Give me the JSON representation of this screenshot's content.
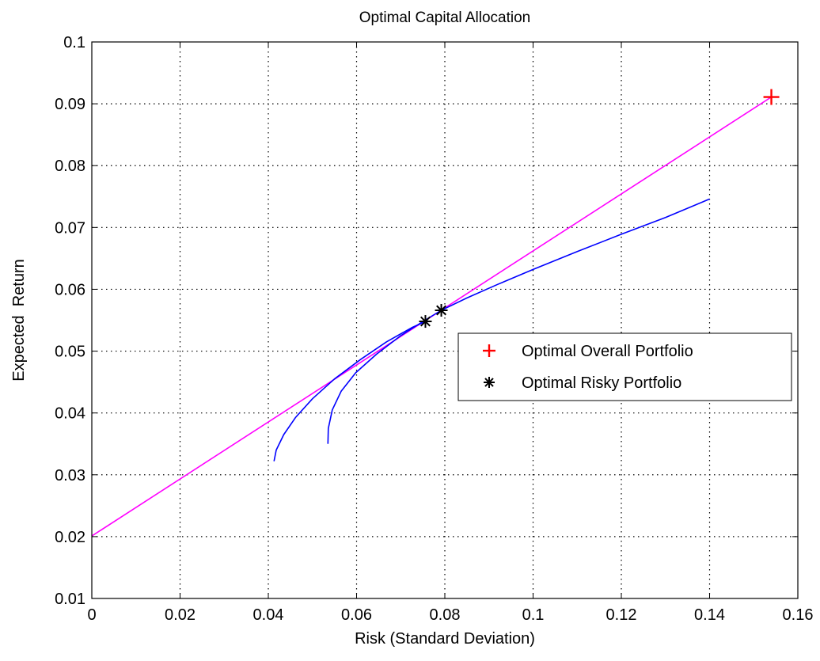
{
  "chart_data": {
    "type": "line",
    "title": "Optimal Capital Allocation",
    "xlabel": "Risk (Standard Deviation)",
    "ylabel": "Expected  Return",
    "xlim": [
      0,
      0.16
    ],
    "ylim": [
      0.01,
      0.1
    ],
    "x_ticks": [
      "0",
      "0.02",
      "0.04",
      "0.06",
      "0.08",
      "0.1",
      "0.12",
      "0.14",
      "0.16"
    ],
    "y_ticks": [
      "0.01",
      "0.02",
      "0.03",
      "0.04",
      "0.05",
      "0.06",
      "0.07",
      "0.08",
      "0.09",
      "0.1"
    ],
    "grid": true,
    "grid_style": "dotted",
    "legend_position": "center-right",
    "colors": {
      "capital_allocation_line": "#ff00ff",
      "frontier": "#0000ff",
      "overall_marker": "#ff0000",
      "risky_marker": "#000000",
      "axes": "#000000",
      "grid": "#000000"
    },
    "lines": [
      {
        "style": "capital-allocation-line",
        "color": "#ff00ff",
        "x": [
          0,
          0.154
        ],
        "y": [
          0.0201,
          0.0911
        ]
      },
      {
        "style": "efficient-frontier-1",
        "color": "#0000ff",
        "x": [
          0.0413,
          0.0418,
          0.0435,
          0.0462,
          0.05,
          0.055,
          0.061,
          0.0668,
          0.0725,
          0.0756
        ],
        "y": [
          0.0322,
          0.034,
          0.0365,
          0.0393,
          0.0423,
          0.0455,
          0.0487,
          0.0515,
          0.0538,
          0.0548
        ]
      },
      {
        "style": "efficient-frontier-2",
        "color": "#0000ff",
        "x": [
          0.0535,
          0.0536,
          0.0545,
          0.0565,
          0.0598,
          0.0645,
          0.07,
          0.0755,
          0.0792,
          0.085,
          0.092,
          0.1,
          0.11,
          0.12,
          0.13,
          0.14
        ],
        "y": [
          0.035,
          0.0375,
          0.0405,
          0.0435,
          0.0465,
          0.0495,
          0.0525,
          0.055,
          0.0566,
          0.0586,
          0.0608,
          0.0632,
          0.0661,
          0.0689,
          0.0716,
          0.0746
        ]
      }
    ],
    "markers": [
      {
        "label": "Optimal Overall Portfolio",
        "symbol": "+",
        "color": "#ff0000",
        "points": [
          [
            0.154,
            0.0911
          ]
        ]
      },
      {
        "label": "Optimal Risky Portfolio",
        "symbol": "*",
        "color": "#000000",
        "points": [
          [
            0.0756,
            0.0548
          ],
          [
            0.0792,
            0.0566
          ]
        ]
      }
    ],
    "legend": [
      {
        "label": "Optimal Overall Portfolio",
        "symbol": "+",
        "color": "#ff0000"
      },
      {
        "label": "Optimal Risky Portfolio",
        "symbol": "*",
        "color": "#000000"
      }
    ]
  }
}
